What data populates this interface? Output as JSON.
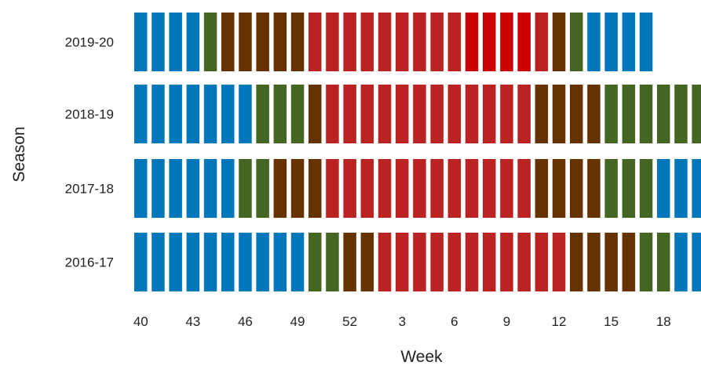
{
  "chart_data": {
    "type": "heatmap",
    "title": "",
    "xlabel": "Week",
    "ylabel": "Season",
    "x_tick_labels": [
      "40",
      "43",
      "46",
      "49",
      "52",
      "3",
      "6",
      "9",
      "12",
      "15",
      "18"
    ],
    "weeks": [
      40,
      41,
      42,
      43,
      44,
      45,
      46,
      47,
      48,
      49,
      50,
      51,
      52,
      1,
      2,
      3,
      4,
      5,
      6,
      7,
      8,
      9,
      10,
      11,
      12,
      13,
      14,
      15,
      16,
      17,
      18,
      19,
      20
    ],
    "legend": "none",
    "grid": false,
    "colors": {
      "blue": "#0077bb",
      "green": "#446622",
      "brown": "#663300",
      "red": "#bb2222",
      "dark_red": "#cc0000"
    },
    "seasons": [
      {
        "name": "2019-20",
        "cells": [
          "blue",
          "blue",
          "blue",
          "blue",
          "green",
          "brown",
          "brown",
          "brown",
          "brown",
          "brown",
          "red",
          "red",
          "red",
          "red",
          "red",
          "red",
          "red",
          "red",
          "red",
          "dark_red",
          "dark_red",
          "dark_red",
          "dark_red",
          "red",
          "brown",
          "green",
          "blue",
          "blue",
          "blue",
          "blue"
        ]
      },
      {
        "name": "2018-19",
        "cells": [
          "blue",
          "blue",
          "blue",
          "blue",
          "blue",
          "blue",
          "blue",
          "green",
          "green",
          "green",
          "brown",
          "red",
          "red",
          "red",
          "red",
          "red",
          "red",
          "red",
          "red",
          "red",
          "red",
          "red",
          "red",
          "brown",
          "brown",
          "brown",
          "brown",
          "green",
          "green",
          "green",
          "green",
          "green",
          "green"
        ]
      },
      {
        "name": "2017-18",
        "cells": [
          "blue",
          "blue",
          "blue",
          "blue",
          "blue",
          "blue",
          "green",
          "green",
          "brown",
          "brown",
          "brown",
          "red",
          "red",
          "red",
          "red",
          "red",
          "red",
          "red",
          "red",
          "red",
          "red",
          "red",
          "red",
          "brown",
          "brown",
          "brown",
          "brown",
          "green",
          "green",
          "green",
          "blue",
          "blue",
          "blue"
        ]
      },
      {
        "name": "2016-17",
        "cells": [
          "blue",
          "blue",
          "blue",
          "blue",
          "blue",
          "blue",
          "blue",
          "blue",
          "blue",
          "blue",
          "green",
          "green",
          "brown",
          "brown",
          "red",
          "red",
          "red",
          "red",
          "red",
          "red",
          "red",
          "red",
          "red",
          "red",
          "red",
          "brown",
          "brown",
          "brown",
          "brown",
          "green",
          "green",
          "blue",
          "blue"
        ]
      }
    ]
  }
}
